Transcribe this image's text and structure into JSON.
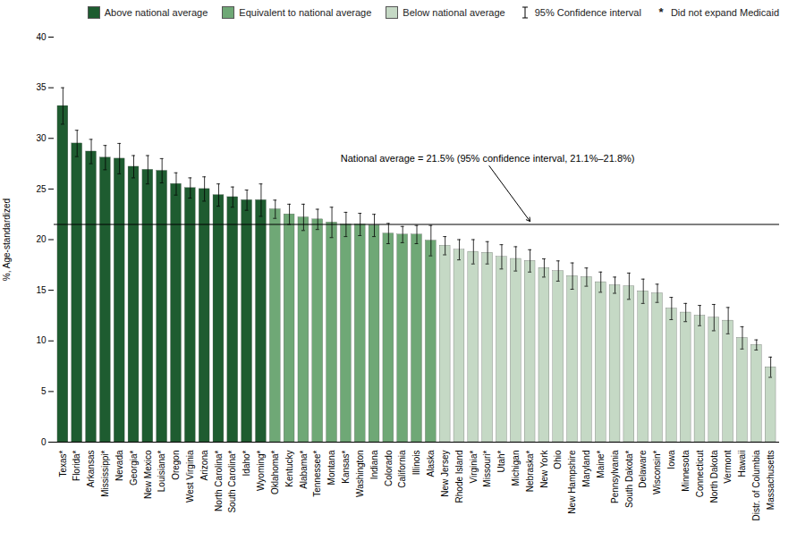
{
  "chart_data": {
    "type": "bar",
    "categories": [
      "Texas*",
      "Florida*",
      "Arkansas",
      "Mississippi*",
      "Nevada",
      "Georgia*",
      "New Mexico",
      "Louisiana*",
      "Oregon",
      "West Virginia",
      "Arizona",
      "North Carolina*",
      "South Carolina*",
      "Idaho*",
      "Wyoming*",
      "Oklahoma*",
      "Kentucky",
      "Alabama*",
      "Tennessee*",
      "Montana",
      "Kansas*",
      "Washington",
      "Indiana",
      "Colorado",
      "California",
      "Illinois",
      "Alaska",
      "New Jersey",
      "Rhode Island",
      "Virginia*",
      "Missouri*",
      "Utah*",
      "Michigan",
      "Nebraska*",
      "New York",
      "Ohio",
      "New Hampshire",
      "Maryland",
      "Maine*",
      "Pennsylvania",
      "South Dakota*",
      "Delaware",
      "Wisconsin*",
      "Iowa",
      "Minnesota",
      "Connecticut",
      "North Dakota",
      "Vermont",
      "Hawaii",
      "Distr. of Columbia",
      "Massachusetts"
    ],
    "series": [
      {
        "name": "Above national average",
        "color": "#1e5c30",
        "values": [
          33.2,
          29.5,
          28.7,
          28.1,
          28.0,
          27.2,
          26.9,
          26.8,
          25.5,
          25.1,
          25.0,
          24.4,
          24.2,
          23.9,
          23.9,
          null,
          null,
          null,
          null,
          null,
          null,
          null,
          null,
          null,
          null,
          null,
          null,
          null,
          null,
          null,
          null,
          null,
          null,
          null,
          null,
          null,
          null,
          null,
          null,
          null,
          null,
          null,
          null,
          null,
          null,
          null,
          null,
          null,
          null,
          null,
          null
        ]
      },
      {
        "name": "Equivalent to national average",
        "color": "#6fa876",
        "values": [
          null,
          null,
          null,
          null,
          null,
          null,
          null,
          null,
          null,
          null,
          null,
          null,
          null,
          null,
          null,
          23.0,
          22.5,
          22.2,
          22.0,
          21.7,
          21.5,
          21.5,
          21.4,
          20.6,
          20.5,
          20.5,
          19.9,
          null,
          null,
          null,
          null,
          null,
          null,
          null,
          null,
          null,
          null,
          null,
          null,
          null,
          null,
          null,
          null,
          null,
          null,
          null,
          null,
          null,
          null,
          null,
          null
        ]
      },
      {
        "name": "Below national average",
        "color": "#c5d9c5",
        "values": [
          null,
          null,
          null,
          null,
          null,
          null,
          null,
          null,
          null,
          null,
          null,
          null,
          null,
          null,
          null,
          null,
          null,
          null,
          null,
          null,
          null,
          null,
          null,
          null,
          null,
          null,
          null,
          19.4,
          19.0,
          18.8,
          18.7,
          18.3,
          18.1,
          17.9,
          17.2,
          16.9,
          16.4,
          16.3,
          15.8,
          15.5,
          15.4,
          14.9,
          14.7,
          13.2,
          12.8,
          12.5,
          12.3,
          12.0,
          10.3,
          9.6,
          7.4
        ]
      }
    ],
    "error_bars": {
      "name": "95% Confidence interval",
      "lower": [
        1.8,
        1.3,
        1.2,
        1.2,
        1.5,
        1.1,
        1.4,
        1.2,
        1.1,
        1.0,
        1.2,
        1.1,
        1.0,
        1.0,
        1.6,
        0.9,
        1.0,
        1.3,
        1.0,
        1.5,
        1.2,
        1.1,
        1.1,
        1.0,
        0.8,
        0.9,
        1.5,
        0.9,
        1.0,
        1.2,
        1.1,
        1.2,
        1.2,
        1.1,
        0.9,
        1.0,
        1.3,
        0.9,
        1.0,
        0.8,
        1.3,
        1.2,
        0.9,
        1.1,
        0.9,
        1.0,
        1.3,
        1.3,
        1.1,
        0.5,
        1.0
      ],
      "upper": [
        1.8,
        1.3,
        1.2,
        1.2,
        1.5,
        1.1,
        1.4,
        1.2,
        1.1,
        1.0,
        1.2,
        1.1,
        1.0,
        1.0,
        1.6,
        0.9,
        1.0,
        1.3,
        1.0,
        1.5,
        1.2,
        1.1,
        1.1,
        1.0,
        0.8,
        0.9,
        1.5,
        0.9,
        1.0,
        1.2,
        1.1,
        1.2,
        1.2,
        1.1,
        0.9,
        1.0,
        1.3,
        0.9,
        1.0,
        0.8,
        1.3,
        1.2,
        0.9,
        1.1,
        0.9,
        1.0,
        1.3,
        1.3,
        1.1,
        0.5,
        1.0
      ]
    },
    "marker_note": {
      "label": "Did not expand Medicaid",
      "marker": "*"
    },
    "hline": 21.5,
    "annotation": {
      "text": "National average = 21.5% (95% confidence interval, 21.1%–21.8%)",
      "x": "Missouri*",
      "y": 27.5,
      "arrow_to": {
        "x": "Nebraska*",
        "y": 21.8
      }
    },
    "ylabel": "%, Age-standardized",
    "ylim": [
      0,
      40
    ],
    "yticks": [
      0,
      5,
      10,
      15,
      20,
      25,
      30,
      35,
      40
    ],
    "grid": false,
    "legend": "upper right"
  }
}
